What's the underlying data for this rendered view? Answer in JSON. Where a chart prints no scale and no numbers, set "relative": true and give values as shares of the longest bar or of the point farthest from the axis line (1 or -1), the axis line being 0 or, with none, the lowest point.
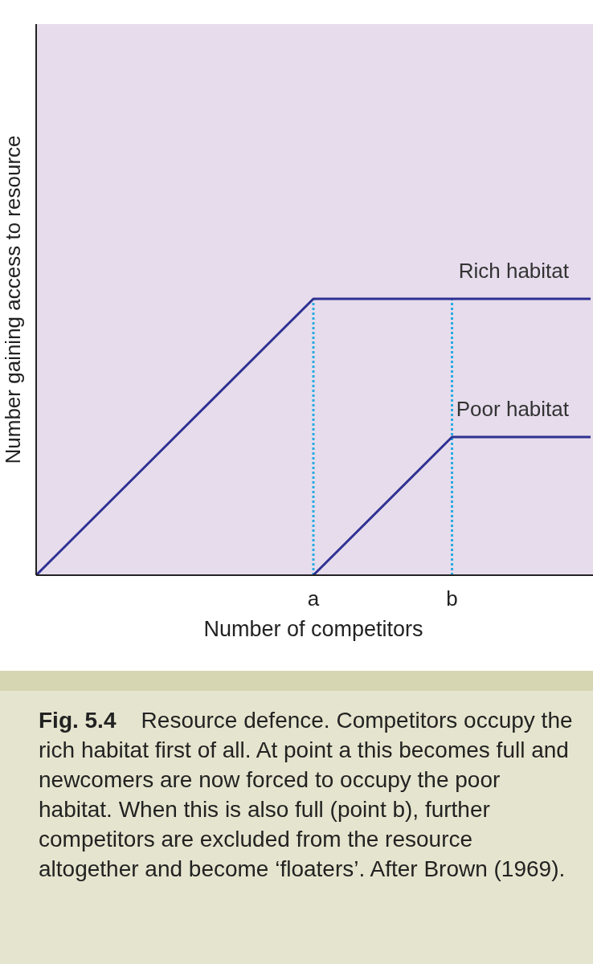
{
  "chart_data": {
    "type": "line",
    "relative": true,
    "xlabel": "Number of competitors",
    "ylabel": "Number gaining access to resource",
    "categories": [
      null,
      null,
      "a",
      "b",
      null
    ],
    "series": [
      {
        "name": "Rich habitat",
        "color": "#2e3192",
        "values": [
          0,
          0.5,
          1,
          1,
          1
        ]
      },
      {
        "name": "Poor habitat",
        "color": "#2e3192",
        "values": [
          null,
          null,
          0,
          0.5,
          0.5
        ]
      }
    ],
    "ref_lines": [
      {
        "axis": "x",
        "value": "a",
        "color": "#29abe2",
        "line_style": "dotted"
      },
      {
        "axis": "x",
        "value": "b",
        "color": "#29abe2",
        "line_style": "dotted"
      }
    ],
    "annotations": [
      "Fig. 5.4",
      "Resource defence. Competitors occupy the rich habitat first of all. At point a this becomes full and newcomers are now forced to occupy the poor habitat. When this is also full (point b), further competitors are excluded from the resource altogether and become ‘floaters’. After Brown (1969)."
    ],
    "legend": false,
    "marker": "none",
    "line_style": "solid"
  }
}
